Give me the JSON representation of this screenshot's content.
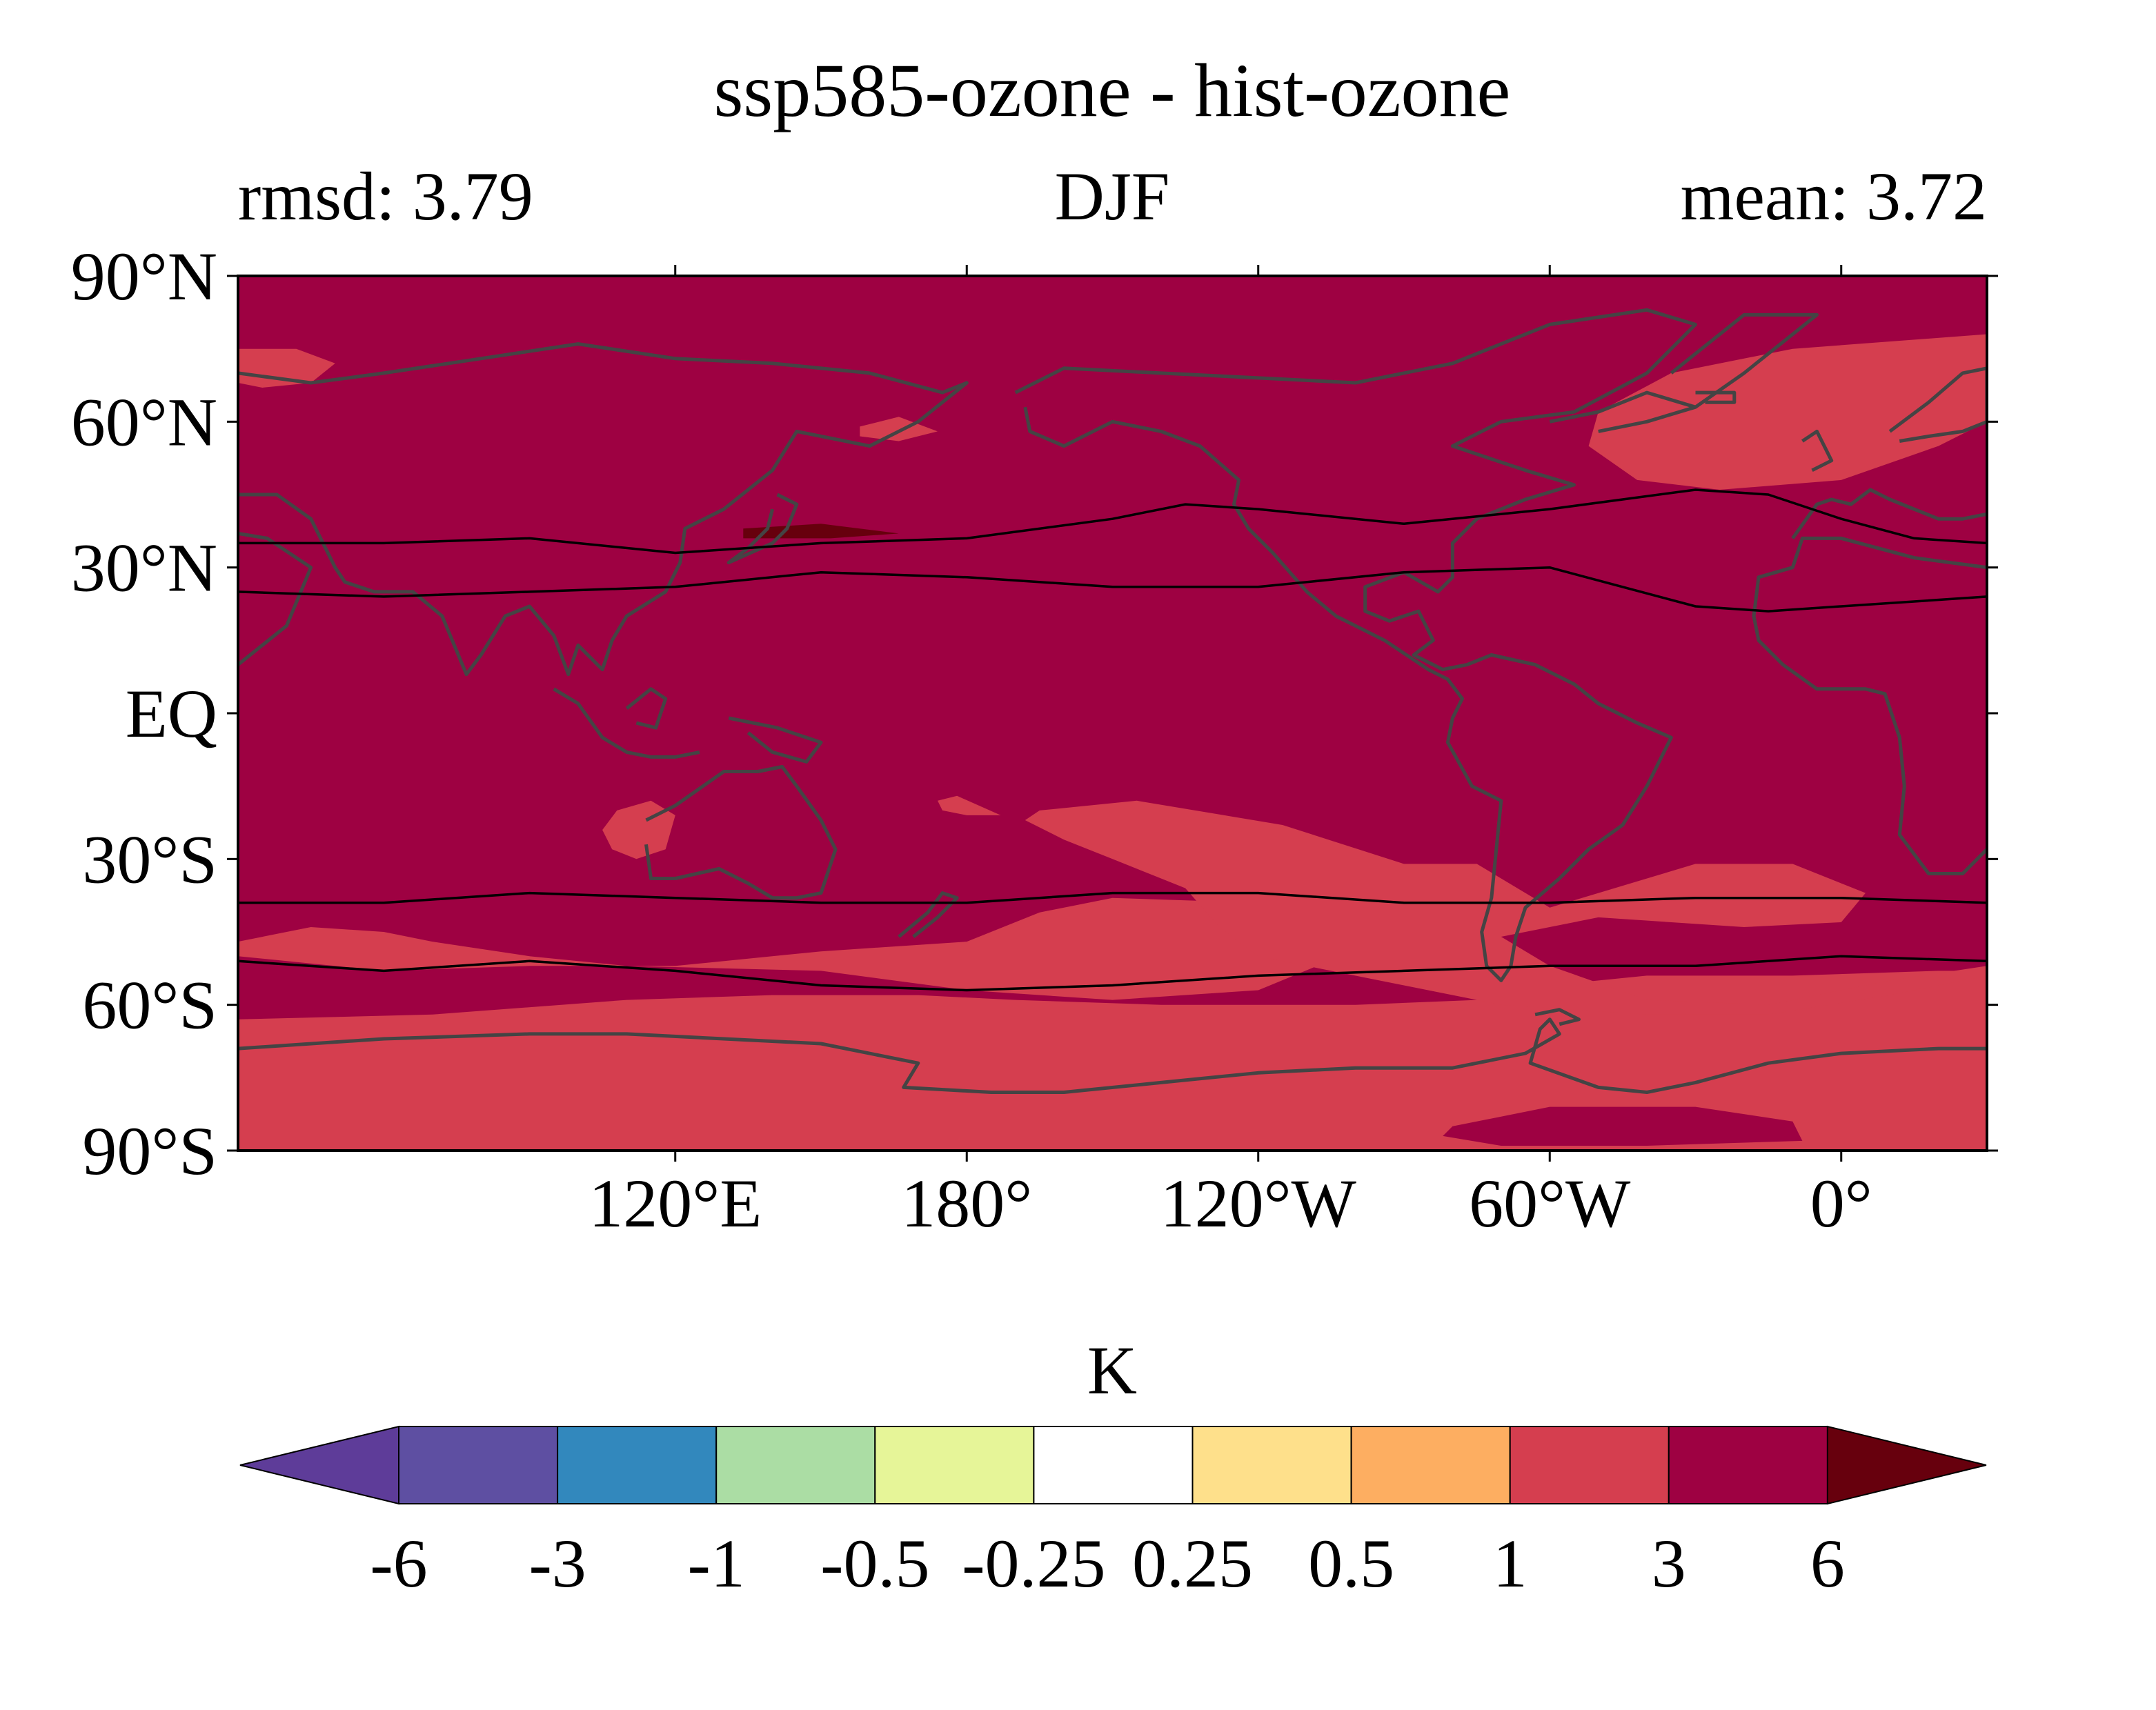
{
  "chart_data": {
    "type": "heatmap",
    "title": "ssp585-ozone - hist-ozone",
    "subtitle_left": "rmsd: 3.79",
    "subtitle_center": "DJF",
    "subtitle_right": "mean: 3.72",
    "projection": "equirectangular, centered 180°",
    "lon_range": [
      30,
      390
    ],
    "lat_range": [
      -90,
      90
    ],
    "y_ticks": [
      {
        "value": 90,
        "label": "90°N"
      },
      {
        "value": 60,
        "label": "60°N"
      },
      {
        "value": 30,
        "label": "30°N"
      },
      {
        "value": 0,
        "label": "EQ"
      },
      {
        "value": -30,
        "label": "30°S"
      },
      {
        "value": -60,
        "label": "60°S"
      },
      {
        "value": -90,
        "label": "90°S"
      }
    ],
    "x_ticks": [
      {
        "value": 120,
        "label": "120°E"
      },
      {
        "value": 180,
        "label": "180°"
      },
      {
        "value": 240,
        "label": "120°W"
      },
      {
        "value": 300,
        "label": "60°W"
      },
      {
        "value": 360,
        "label": "0°"
      }
    ],
    "background_value_band": "3 to 6",
    "regions": [
      {
        "band": "1 to 3",
        "outline_lonlat": [
          [
            30,
            -50
          ],
          [
            60,
            -53
          ],
          [
            90,
            -52
          ],
          [
            120,
            -52
          ],
          [
            150,
            -49
          ],
          [
            180,
            -47
          ],
          [
            195,
            -41
          ],
          [
            210,
            -38
          ],
          [
            240,
            -39
          ],
          [
            255,
            -42
          ],
          [
            257,
            -50
          ],
          [
            240,
            -57
          ],
          [
            210,
            -59
          ],
          [
            180,
            -57
          ],
          [
            150,
            -53
          ],
          [
            110,
            -52
          ],
          [
            90,
            -50
          ],
          [
            70,
            -47
          ],
          [
            60,
            -45
          ],
          [
            45,
            -44
          ],
          [
            30,
            -47
          ]
        ]
      },
      {
        "band": "1 to 3",
        "outline_lonlat": [
          [
            30,
            -63
          ],
          [
            70,
            -62
          ],
          [
            110,
            -59
          ],
          [
            140,
            -58
          ],
          [
            170,
            -58
          ],
          [
            190,
            -59
          ],
          [
            220,
            -60
          ],
          [
            260,
            -60
          ],
          [
            285,
            -59
          ],
          [
            300,
            -56
          ],
          [
            320,
            -54
          ],
          [
            350,
            -54
          ],
          [
            380,
            -53
          ],
          [
            390,
            -53
          ],
          [
            390,
            -90
          ],
          [
            30,
            -90
          ]
        ]
      },
      {
        "band": "1 to 3",
        "outline_lonlat": [
          [
            195,
            -20
          ],
          [
            215,
            -18
          ],
          [
            245,
            -23
          ],
          [
            270,
            -31
          ],
          [
            285,
            -31
          ],
          [
            300,
            -40
          ],
          [
            330,
            -31
          ],
          [
            350,
            -31
          ],
          [
            365,
            -37
          ],
          [
            360,
            -43
          ],
          [
            340,
            -44
          ],
          [
            310,
            -42
          ],
          [
            290,
            -46
          ],
          [
            300,
            -52
          ],
          [
            320,
            -59
          ],
          [
            345,
            -60
          ],
          [
            370,
            -55
          ],
          [
            390,
            -52
          ],
          [
            390,
            -54
          ],
          [
            370,
            -58
          ],
          [
            345,
            -62
          ],
          [
            320,
            -62
          ],
          [
            290,
            -60
          ],
          [
            270,
            -56
          ],
          [
            240,
            -50
          ],
          [
            232,
            -44
          ],
          [
            225,
            -36
          ],
          [
            210,
            -30
          ],
          [
            200,
            -26
          ],
          [
            192,
            -22
          ]
        ]
      },
      {
        "band": "1 to 3",
        "outline_lonlat": [
          [
            108,
            -20
          ],
          [
            115,
            -18
          ],
          [
            120,
            -21
          ],
          [
            118,
            -28
          ],
          [
            112,
            -30
          ],
          [
            107,
            -28
          ],
          [
            105,
            -24
          ]
        ]
      },
      {
        "band": "1 to 3",
        "outline_lonlat": [
          [
            174,
            -18
          ],
          [
            178,
            -17
          ],
          [
            187,
            -21
          ],
          [
            180,
            -21
          ],
          [
            175,
            -20
          ]
        ]
      },
      {
        "band": "1 to 3",
        "outline_lonlat": [
          [
            310,
            62
          ],
          [
            325,
            70
          ],
          [
            350,
            75
          ],
          [
            390,
            78
          ],
          [
            390,
            60
          ],
          [
            380,
            55
          ],
          [
            360,
            48
          ],
          [
            335,
            46
          ],
          [
            318,
            48
          ],
          [
            308,
            55
          ]
        ]
      },
      {
        "band": "1 to 3",
        "outline_lonlat": [
          [
            30,
            75
          ],
          [
            42,
            75
          ],
          [
            50,
            72
          ],
          [
            45,
            68
          ],
          [
            35,
            67
          ],
          [
            30,
            68
          ]
        ]
      },
      {
        "band": "1 to 3",
        "outline_lonlat": [
          [
            158,
            59
          ],
          [
            166,
            61
          ],
          [
            174,
            58
          ],
          [
            166,
            56
          ],
          [
            158,
            57
          ]
        ]
      },
      {
        "band": "3 to 6",
        "outline_lonlat": [
          [
            280,
            -85
          ],
          [
            300,
            -81
          ],
          [
            330,
            -81
          ],
          [
            350,
            -84
          ],
          [
            352,
            -88
          ],
          [
            320,
            -89
          ],
          [
            290,
            -89
          ],
          [
            278,
            -87
          ]
        ]
      },
      {
        "band": ">6",
        "outline_lonlat": [
          [
            134,
            38
          ],
          [
            150,
            39
          ],
          [
            166,
            37
          ],
          [
            152,
            36
          ],
          [
            134,
            36
          ]
        ]
      }
    ],
    "contour_lines": [
      {
        "points_lonlat": [
          [
            30,
            35
          ],
          [
            60,
            35
          ],
          [
            90,
            36
          ],
          [
            120,
            33
          ],
          [
            150,
            35
          ],
          [
            180,
            36
          ],
          [
            210,
            40
          ],
          [
            225,
            43
          ],
          [
            240,
            42
          ],
          [
            270,
            39
          ],
          [
            300,
            42
          ],
          [
            330,
            46
          ],
          [
            345,
            45
          ],
          [
            360,
            40
          ],
          [
            375,
            36
          ],
          [
            390,
            35
          ]
        ]
      },
      {
        "points_lonlat": [
          [
            30,
            25
          ],
          [
            60,
            24
          ],
          [
            90,
            25
          ],
          [
            120,
            26
          ],
          [
            150,
            29
          ],
          [
            180,
            28
          ],
          [
            210,
            26
          ],
          [
            240,
            26
          ],
          [
            270,
            29
          ],
          [
            300,
            30
          ],
          [
            330,
            22
          ],
          [
            345,
            21
          ],
          [
            360,
            22
          ],
          [
            390,
            24
          ]
        ]
      },
      {
        "points_lonlat": [
          [
            30,
            -39
          ],
          [
            60,
            -39
          ],
          [
            90,
            -37
          ],
          [
            120,
            -38
          ],
          [
            150,
            -39
          ],
          [
            180,
            -39
          ],
          [
            210,
            -37
          ],
          [
            240,
            -37
          ],
          [
            270,
            -39
          ],
          [
            300,
            -39
          ],
          [
            330,
            -38
          ],
          [
            360,
            -38
          ],
          [
            390,
            -39
          ]
        ]
      },
      {
        "points_lonlat": [
          [
            30,
            -51
          ],
          [
            60,
            -53
          ],
          [
            90,
            -51
          ],
          [
            120,
            -53
          ],
          [
            150,
            -56
          ],
          [
            180,
            -57
          ],
          [
            210,
            -56
          ],
          [
            240,
            -54
          ],
          [
            270,
            -53
          ],
          [
            300,
            -52
          ],
          [
            330,
            -52
          ],
          [
            360,
            -50
          ],
          [
            390,
            -51
          ]
        ]
      }
    ],
    "colorbar": {
      "label": "K",
      "tick_labels": [
        "-6",
        "-3",
        "-1",
        "-0.5",
        "-0.25",
        "0.25",
        "0.5",
        "1",
        "3",
        "6"
      ],
      "colors": [
        "#5e3c99",
        "#5e4fa2",
        "#3288bd",
        "#abdda4",
        "#e6f598",
        "#ffffff",
        "#fee08b",
        "#fdae61",
        "#d53e4f",
        "#9e0142",
        "#67000d"
      ],
      "extend": "both"
    },
    "band_colors": {
      "1 to 3": "#d53e4f",
      "3 to 6": "#9e0142",
      ">6": "#67000d"
    },
    "coastline_color": "#444444",
    "grid": false
  }
}
